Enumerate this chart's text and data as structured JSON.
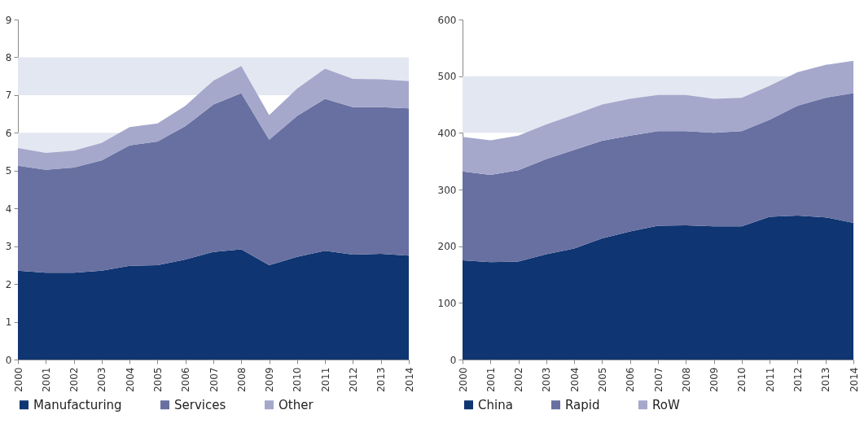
{
  "chart_data": [
    {
      "type": "area",
      "stacked": true,
      "legend": "bottom",
      "categories": [
        "2000",
        "2001",
        "2002",
        "2003",
        "2004",
        "2005",
        "2006",
        "2007",
        "2008",
        "2009",
        "2010",
        "2011",
        "2012",
        "2013",
        "2014"
      ],
      "series": [
        {
          "name": "Manufacturing",
          "color": "#0f3572",
          "values": [
            2.35,
            2.3,
            2.3,
            2.35,
            2.48,
            2.5,
            2.65,
            2.85,
            2.92,
            2.5,
            2.72,
            2.88,
            2.78,
            2.8,
            2.75
          ]
        },
        {
          "name": "Services",
          "color": "#6770a0",
          "values": [
            2.78,
            2.72,
            2.78,
            2.92,
            3.19,
            3.27,
            3.53,
            3.9,
            4.13,
            3.32,
            3.73,
            4.02,
            3.9,
            3.88,
            3.9
          ]
        },
        {
          "name": "Other",
          "color": "#a5a8cb",
          "values": [
            0.47,
            0.45,
            0.45,
            0.46,
            0.48,
            0.48,
            0.54,
            0.63,
            0.72,
            0.65,
            0.72,
            0.8,
            0.75,
            0.74,
            0.72
          ]
        }
      ],
      "ylim": [
        0,
        9
      ],
      "yticks": [
        0,
        1,
        2,
        3,
        4,
        5,
        6,
        7,
        8,
        9
      ],
      "bands": [
        {
          "axis": "y",
          "from": 5,
          "to": 6,
          "color": "#e3e7f1"
        },
        {
          "axis": "y",
          "from": 7,
          "to": 8,
          "color": "#e3e7f1"
        }
      ]
    },
    {
      "type": "area",
      "stacked": true,
      "legend": "bottom",
      "categories": [
        "2000",
        "2001",
        "2002",
        "2003",
        "2004",
        "2005",
        "2006",
        "2007",
        "2008",
        "2009",
        "2010",
        "2011",
        "2012",
        "2013",
        "2014"
      ],
      "series": [
        {
          "name": "China",
          "color": "#0f3572",
          "values": [
            175,
            172,
            173,
            186,
            196,
            214,
            226,
            236,
            237,
            235,
            235,
            252,
            254,
            251,
            241
          ]
        },
        {
          "name": "Rapid",
          "color": "#6770a0",
          "values": [
            157,
            154,
            161,
            168,
            174,
            172,
            169,
            167,
            166,
            165,
            168,
            171,
            194,
            211,
            229
          ]
        },
        {
          "name": "RoW",
          "color": "#a5a8cb",
          "values": [
            61,
            61,
            61,
            61,
            62,
            64,
            65,
            64,
            64,
            60,
            59,
            60,
            59,
            58,
            57
          ]
        }
      ],
      "ylim": [
        0,
        600
      ],
      "yticks": [
        0,
        100,
        200,
        300,
        400,
        500,
        600
      ],
      "bands": [
        {
          "axis": "y",
          "from": 400,
          "to": 500,
          "color": "#e3e7f1"
        }
      ]
    }
  ]
}
